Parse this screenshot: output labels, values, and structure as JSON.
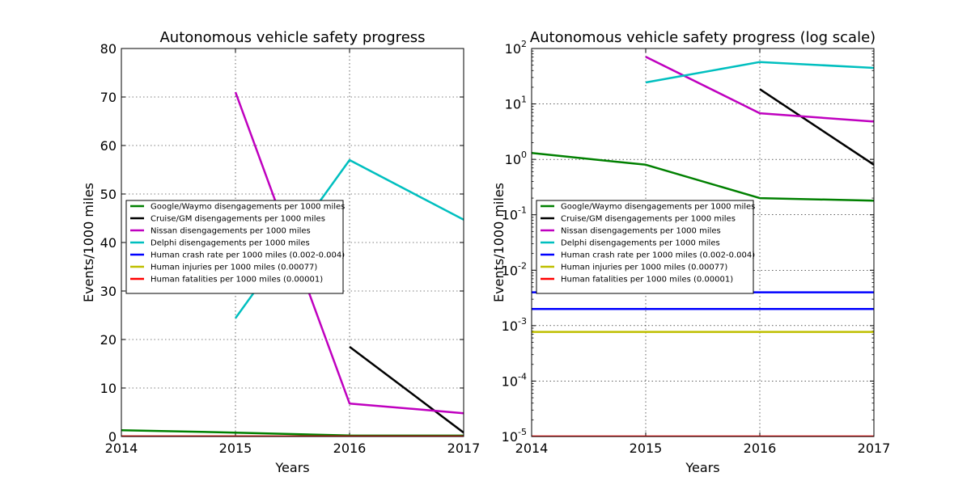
{
  "chart_data": [
    {
      "type": "line",
      "title": "Autonomous vehicle safety progress",
      "xlabel": "Years",
      "ylabel": "Events/1000 miles",
      "xlim": [
        2014,
        2017
      ],
      "ylim": [
        0,
        80
      ],
      "yscale": "linear",
      "x_ticks": [
        "2014",
        "2015",
        "2016",
        "2017"
      ],
      "y_ticks": [
        "0",
        "10",
        "20",
        "30",
        "40",
        "50",
        "60",
        "70",
        "80"
      ],
      "grid": true,
      "legend_position": "center-left",
      "series": [
        {
          "name": "Google/Waymo disengagements per 1000 miles",
          "color": "#008000",
          "x": [
            2014,
            2015,
            2016,
            2017
          ],
          "y": [
            1.3,
            0.8,
            0.2,
            0.18
          ]
        },
        {
          "name": "Cruise/GM disengagements per 1000 miles",
          "color": "#000000",
          "x": [
            2016,
            2017
          ],
          "y": [
            18.5,
            0.8
          ]
        },
        {
          "name": "Nissan disengagements per 1000 miles",
          "color": "#bf00bf",
          "x": [
            2015,
            2016,
            2017
          ],
          "y": [
            71,
            6.8,
            4.8
          ]
        },
        {
          "name": "Delphi disengagements per 1000 miles",
          "color": "#00bfbf",
          "x": [
            2015,
            2016,
            2017
          ],
          "y": [
            24.4,
            57,
            44.7
          ]
        },
        {
          "name": "Human crash rate per 1000 miles (0.002-0.004)",
          "color": "#0000ff",
          "x": [
            2014,
            2017
          ],
          "y": [
            0.004,
            0.004
          ]
        },
        {
          "name": "Human injuries per 1000 miles (0.00077)",
          "color": "#bfbf00",
          "x": [
            2014,
            2017
          ],
          "y": [
            0.00077,
            0.00077
          ]
        },
        {
          "name": "Human fatalities per 1000 miles (0.00001)",
          "color": "#ff0000",
          "x": [
            2014,
            2017
          ],
          "y": [
            1e-05,
            1e-05
          ]
        }
      ]
    },
    {
      "type": "line",
      "title": "Autonomous vehicle safety progress (log scale)",
      "xlabel": "Years",
      "ylabel": "Events/1000 miles",
      "xlim": [
        2014,
        2017
      ],
      "ylim": [
        1e-05,
        100
      ],
      "yscale": "log",
      "x_ticks": [
        "2014",
        "2015",
        "2016",
        "2017"
      ],
      "y_ticks": [
        {
          "base": "10",
          "exp": "-5"
        },
        {
          "base": "10",
          "exp": "-4"
        },
        {
          "base": "10",
          "exp": "-3"
        },
        {
          "base": "10",
          "exp": "-2"
        },
        {
          "base": "10",
          "exp": "-1"
        },
        {
          "base": "10",
          "exp": "0"
        },
        {
          "base": "10",
          "exp": "1"
        },
        {
          "base": "10",
          "exp": "2"
        }
      ],
      "grid": true,
      "legend_position": "center-left",
      "series": [
        {
          "name": "Google/Waymo disengagements per 1000 miles",
          "color": "#008000",
          "x": [
            2014,
            2015,
            2016,
            2017
          ],
          "y": [
            1.3,
            0.8,
            0.2,
            0.18
          ]
        },
        {
          "name": "Cruise/GM disengagements per 1000 miles",
          "color": "#000000",
          "x": [
            2016,
            2017
          ],
          "y": [
            18.5,
            0.8
          ]
        },
        {
          "name": "Nissan disengagements per 1000 miles",
          "color": "#bf00bf",
          "x": [
            2015,
            2016,
            2017
          ],
          "y": [
            71,
            6.8,
            4.8
          ]
        },
        {
          "name": "Delphi disengagements per 1000 miles",
          "color": "#00bfbf",
          "x": [
            2015,
            2016,
            2017
          ],
          "y": [
            24.4,
            57,
            44.7
          ]
        },
        {
          "name": "Human crash rate per 1000 miles (0.002-0.004)",
          "color": "#0000ff",
          "x": [
            2014,
            2017
          ],
          "y": [
            0.004,
            0.004
          ]
        },
        {
          "name": "Human crash rate per 1000 miles (0.002-0.004)",
          "color": "#0000ff",
          "x": [
            2014,
            2017
          ],
          "y": [
            0.002,
            0.002
          ]
        },
        {
          "name": "Human injuries per 1000 miles (0.00077)",
          "color": "#bfbf00",
          "x": [
            2014,
            2017
          ],
          "y": [
            0.00077,
            0.00077
          ]
        },
        {
          "name": "Human fatalities per 1000 miles (0.00001)",
          "color": "#ff0000",
          "x": [
            2014,
            2017
          ],
          "y": [
            1e-05,
            1e-05
          ]
        }
      ]
    }
  ]
}
